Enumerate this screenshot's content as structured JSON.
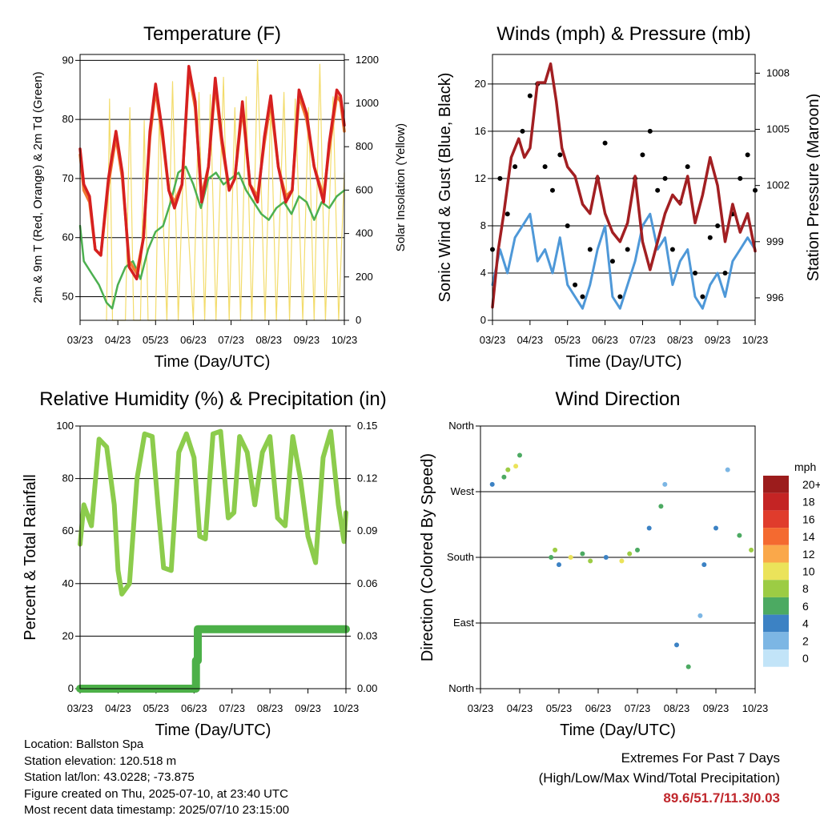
{
  "chart_data": [
    {
      "type": "line",
      "title": "Temperature (F)",
      "xlabel": "Time (Day/UTC)",
      "ylabel": "2m & 9m T (Red, Orange) & 2m Td (Green)",
      "y2label": "Solar Insolation (Yellow)",
      "x_ticks": [
        "03/23",
        "04/23",
        "05/23",
        "06/23",
        "07/23",
        "08/23",
        "09/23",
        "10/23"
      ],
      "xlim": [
        0,
        7
      ],
      "ylim": [
        46,
        91
      ],
      "y_ticks": [
        50,
        60,
        70,
        80,
        90
      ],
      "y2lim": [
        0,
        1225
      ],
      "y2_ticks": [
        0,
        200,
        400,
        600,
        800,
        1000,
        1200
      ],
      "grid": "horizontal",
      "series": [
        {
          "color": "#d62020",
          "x": [
            0,
            0.1,
            0.25,
            0.4,
            0.55,
            0.75,
            0.95,
            1.12,
            1.3,
            1.5,
            1.68,
            1.85,
            2.0,
            2.18,
            2.35,
            2.5,
            2.7,
            2.88,
            3.05,
            3.22,
            3.4,
            3.58,
            3.75,
            3.95,
            4.1,
            4.3,
            4.5,
            4.7,
            4.88,
            5.05,
            5.25,
            5.45,
            5.62,
            5.8,
            6.0,
            6.2,
            6.45,
            6.6,
            6.8,
            6.9,
            7.0
          ],
          "y": [
            75,
            69,
            67,
            58,
            57,
            70,
            78,
            71,
            55,
            53,
            60,
            78,
            86,
            78,
            68,
            65,
            69,
            89,
            83,
            66,
            72,
            87,
            77,
            68,
            70,
            83,
            69,
            66,
            77,
            84,
            72,
            66,
            68,
            85,
            81,
            72,
            66,
            76,
            85,
            84,
            79
          ]
        },
        {
          "color": "#f07830",
          "x": [
            0,
            0.1,
            0.25,
            0.4,
            0.55,
            0.75,
            0.95,
            1.12,
            1.3,
            1.5,
            1.68,
            1.85,
            2.0,
            2.18,
            2.35,
            2.5,
            2.7,
            2.88,
            3.05,
            3.22,
            3.4,
            3.58,
            3.75,
            3.95,
            4.1,
            4.3,
            4.5,
            4.7,
            4.88,
            5.05,
            5.25,
            5.45,
            5.62,
            5.8,
            6.0,
            6.2,
            6.45,
            6.6,
            6.8,
            6.9,
            7.0
          ],
          "y": [
            74,
            68,
            66,
            58,
            57,
            69,
            77,
            70,
            56,
            54,
            60,
            77,
            85,
            77,
            68,
            66,
            69,
            88,
            82,
            67,
            72,
            86,
            76,
            68,
            70,
            82,
            69,
            67,
            76,
            83,
            72,
            67,
            68,
            84,
            80,
            72,
            67,
            75,
            84,
            83,
            78
          ]
        },
        {
          "color": "#4cb050",
          "x": [
            0,
            0.1,
            0.3,
            0.5,
            0.7,
            0.85,
            1.0,
            1.2,
            1.4,
            1.6,
            1.8,
            2.0,
            2.2,
            2.4,
            2.6,
            2.8,
            3.0,
            3.2,
            3.4,
            3.6,
            3.8,
            4.0,
            4.2,
            4.4,
            4.6,
            4.8,
            5.0,
            5.2,
            5.4,
            5.6,
            5.8,
            6.0,
            6.2,
            6.4,
            6.6,
            6.8,
            7.0
          ],
          "y": [
            62,
            56,
            54,
            52,
            49,
            48,
            52,
            55,
            56,
            53,
            58,
            61,
            62,
            66,
            71,
            72,
            69,
            65,
            70,
            71,
            69,
            70,
            71,
            68,
            66,
            64,
            63,
            65,
            66,
            64,
            67,
            66,
            63,
            66,
            65,
            67,
            68
          ]
        },
        {
          "color": "#f3dc6c",
          "axis": "y2",
          "x": [
            0.7,
            0.78,
            0.86,
            1.2,
            1.32,
            1.42,
            1.6,
            1.7,
            1.8,
            2.0,
            2.1,
            2.3,
            2.45,
            2.6,
            2.75,
            3.0,
            3.15,
            3.3,
            3.45,
            3.6,
            3.8,
            3.95,
            4.1,
            4.25,
            4.4,
            4.55,
            4.7,
            4.9,
            5.05,
            5.2,
            5.4,
            5.55,
            5.7,
            5.9,
            6.05,
            6.2,
            6.35,
            6.5,
            6.7,
            6.85,
            7.0
          ],
          "y": [
            0,
            1020,
            0,
            0,
            980,
            0,
            0,
            920,
            0,
            0,
            950,
            0,
            1100,
            0,
            780,
            0,
            1050,
            0,
            1040,
            0,
            1120,
            0,
            980,
            0,
            1030,
            0,
            1200,
            0,
            1000,
            0,
            1050,
            0,
            1020,
            0,
            980,
            0,
            1180,
            0,
            1030,
            0,
            680
          ]
        }
      ]
    },
    {
      "type": "scatter",
      "title": "Winds (mph) & Pressure (mb)",
      "xlabel": "Time (Day/UTC)",
      "ylabel": "Sonic Wind & Gust (Blue, Black)",
      "y2label": "Station Pressure (Maroon)",
      "x_ticks": [
        "03/23",
        "04/23",
        "05/23",
        "06/23",
        "07/23",
        "08/23",
        "09/23",
        "10/23"
      ],
      "xlim": [
        0,
        7
      ],
      "ylim": [
        0,
        22.5
      ],
      "y_ticks": [
        0,
        4,
        8,
        12,
        16,
        20
      ],
      "y2lim": [
        994.8,
        1009.0
      ],
      "y2_ticks": [
        996,
        999,
        1002,
        1005,
        1008
      ],
      "grid": "horizontal",
      "series": [
        {
          "color": "#4e98d8",
          "x": [
            0,
            0.2,
            0.4,
            0.6,
            0.8,
            1.0,
            1.2,
            1.4,
            1.6,
            1.8,
            2.0,
            2.2,
            2.4,
            2.6,
            2.8,
            3.0,
            3.2,
            3.4,
            3.6,
            3.8,
            4.0,
            4.2,
            4.4,
            4.6,
            4.8,
            5.0,
            5.2,
            5.4,
            5.6,
            5.8,
            6.0,
            6.2,
            6.4,
            6.6,
            6.8,
            7.0
          ],
          "y": [
            3,
            6,
            4,
            7,
            8,
            9,
            5,
            6,
            4,
            7,
            3,
            2,
            1,
            3,
            6,
            8,
            2,
            1,
            3,
            5,
            8,
            9,
            6,
            7,
            3,
            5,
            6,
            2,
            1,
            3,
            4,
            2,
            5,
            6,
            7,
            6
          ]
        },
        {
          "color": "#000000",
          "x": [
            0,
            0.2,
            0.4,
            0.6,
            0.8,
            1.0,
            1.2,
            1.4,
            1.6,
            1.8,
            2.0,
            2.2,
            2.4,
            2.6,
            2.8,
            3.0,
            3.2,
            3.4,
            3.6,
            3.8,
            4.0,
            4.2,
            4.4,
            4.6,
            4.8,
            5.0,
            5.2,
            5.4,
            5.6,
            5.8,
            6.0,
            6.2,
            6.4,
            6.6,
            6.8,
            7.0
          ],
          "y": [
            6,
            12,
            9,
            13,
            16,
            19,
            20,
            13,
            11,
            14,
            8,
            3,
            2,
            6,
            12,
            15,
            5,
            2,
            6,
            12,
            14,
            16,
            11,
            12,
            6,
            10,
            13,
            4,
            2,
            7,
            8,
            4,
            9,
            12,
            14,
            11
          ]
        },
        {
          "color": "#a21f22",
          "axis": "y2",
          "x": [
            0,
            0.15,
            0.3,
            0.5,
            0.7,
            0.85,
            1.0,
            1.2,
            1.4,
            1.55,
            1.7,
            1.85,
            2.0,
            2.2,
            2.4,
            2.6,
            2.8,
            3.0,
            3.2,
            3.4,
            3.6,
            3.8,
            4.0,
            4.2,
            4.4,
            4.6,
            4.8,
            5.0,
            5.2,
            5.4,
            5.6,
            5.8,
            6.0,
            6.2,
            6.4,
            6.6,
            6.8,
            7.0
          ],
          "y": [
            995.5,
            998.5,
            1000.5,
            1003.5,
            1004.5,
            1003.5,
            1004.0,
            1007.5,
            1007.5,
            1008.5,
            1006.5,
            1004.0,
            1003.0,
            1002.5,
            1001.0,
            1000.5,
            1002.5,
            1000.5,
            999.5,
            999.0,
            1000.0,
            1002.5,
            999.0,
            997.5,
            999.0,
            1000.5,
            1001.5,
            1001.0,
            1002.5,
            1000.0,
            1001.5,
            1003.5,
            1002.0,
            999.0,
            1001.0,
            999.5,
            1000.5,
            998.5
          ]
        }
      ]
    },
    {
      "type": "line",
      "title": "Relative Humidity (%) & Precipitation (in)",
      "xlabel": "Time (Day/UTC)",
      "ylabel": "Percent & Total Rainfall",
      "x_ticks": [
        "03/23",
        "04/23",
        "05/23",
        "06/23",
        "07/23",
        "08/23",
        "09/23",
        "10/23"
      ],
      "xlim": [
        0,
        7
      ],
      "ylim": [
        0,
        100
      ],
      "y_ticks": [
        0,
        20,
        40,
        60,
        80,
        100
      ],
      "y2lim": [
        0,
        0.15
      ],
      "y2_ticks": [
        "0.00",
        "0.03",
        "0.06",
        "0.09",
        "0.12",
        "0.15"
      ],
      "grid": "horizontal",
      "series": [
        {
          "color": "#8ccc4c",
          "x": [
            0,
            0.1,
            0.3,
            0.5,
            0.7,
            0.9,
            1.0,
            1.1,
            1.3,
            1.5,
            1.7,
            1.9,
            2.05,
            2.2,
            2.4,
            2.6,
            2.8,
            3.0,
            3.15,
            3.3,
            3.5,
            3.7,
            3.9,
            4.05,
            4.2,
            4.4,
            4.6,
            4.8,
            5.0,
            5.2,
            5.4,
            5.6,
            5.8,
            6.0,
            6.2,
            6.4,
            6.6,
            6.8,
            6.95,
            7.0
          ],
          "y": [
            55,
            70,
            62,
            95,
            92,
            70,
            45,
            36,
            40,
            80,
            97,
            96,
            70,
            46,
            45,
            90,
            97,
            88,
            58,
            57,
            97,
            98,
            65,
            67,
            96,
            90,
            70,
            90,
            96,
            65,
            62,
            96,
            80,
            58,
            48,
            88,
            98,
            70,
            56,
            67
          ]
        },
        {
          "color": "#4cb048",
          "axis": "y2",
          "x": [
            0,
            0.5,
            1.0,
            1.5,
            2.0,
            2.5,
            3.0,
            3.05,
            3.05,
            3.1,
            3.1,
            4.0,
            5.0,
            6.0,
            7.0
          ],
          "y": [
            0.0,
            0.0,
            0.0,
            0.0,
            0.0,
            0.0,
            0.0,
            0.0,
            0.016,
            0.016,
            0.034,
            0.034,
            0.034,
            0.034,
            0.034
          ]
        }
      ]
    },
    {
      "type": "scatter",
      "title": "Wind Direction",
      "xlabel": "Time (Day/UTC)",
      "ylabel": "Direction (Colored By Speed)",
      "x_ticks": [
        "03/23",
        "04/23",
        "05/23",
        "06/23",
        "07/23",
        "08/23",
        "09/23",
        "10/23"
      ],
      "xlim": [
        0,
        7
      ],
      "ylim": [
        0,
        360
      ],
      "y_tick_labels": [
        "North",
        "East",
        "South",
        "West",
        "North"
      ],
      "grid": "horizontal",
      "legend_title": "mph",
      "legend": [
        {
          "label": "20+",
          "color": "#9c1c1c"
        },
        {
          "label": "18",
          "color": "#c42424"
        },
        {
          "label": "16",
          "color": "#e03c2c"
        },
        {
          "label": "14",
          "color": "#f46a30"
        },
        {
          "label": "12",
          "color": "#faa84a"
        },
        {
          "label": "10",
          "color": "#ebe35a"
        },
        {
          "label": "8",
          "color": "#9ccc44"
        },
        {
          "label": "6",
          "color": "#4caa62"
        },
        {
          "label": "4",
          "color": "#3c82c4"
        },
        {
          "label": "2",
          "color": "#7cb6e4"
        },
        {
          "label": "0",
          "color": "#c2e4f8"
        }
      ],
      "x": [
        0.3,
        0.6,
        0.7,
        0.9,
        1.0,
        1.8,
        1.9,
        2.0,
        2.3,
        2.6,
        2.8,
        3.2,
        3.6,
        3.8,
        4.0,
        4.3,
        4.6,
        4.7,
        5.0,
        5.3,
        5.6,
        5.7,
        6.0,
        6.3,
        6.6,
        6.9
      ],
      "y": [
        280,
        290,
        300,
        305,
        320,
        180,
        190,
        170,
        180,
        185,
        175,
        180,
        175,
        185,
        190,
        220,
        250,
        280,
        60,
        30,
        100,
        170,
        220,
        300,
        210,
        190
      ],
      "speed": [
        4,
        6,
        8,
        10,
        6,
        6,
        8,
        4,
        10,
        6,
        8,
        4,
        10,
        8,
        6,
        4,
        6,
        2,
        4,
        6,
        2,
        4,
        4,
        2,
        6,
        8
      ]
    }
  ],
  "info": {
    "location": "Location: Ballston Spa",
    "elevation": "Station elevation: 120.518 m",
    "latlon": "Station lat/lon: 43.0228; -73.875",
    "created": "Figure created on Thu, 2025-07-10, at 23:40 UTC",
    "recent": "Most recent data timestamp: 2025/07/10 23:15:00"
  },
  "extremes": {
    "line1": "Extremes For Past 7 Days",
    "line2": "(High/Low/Max Wind/Total Precipitation)",
    "values": "89.6/51.7/11.3/0.03"
  }
}
